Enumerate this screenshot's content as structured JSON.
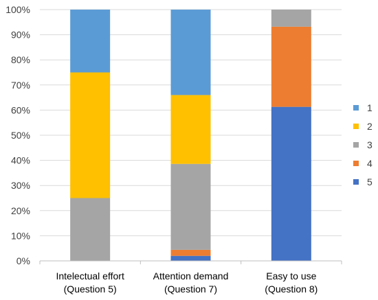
{
  "chart_data": {
    "type": "bar",
    "stacked": true,
    "percent": true,
    "categories": [
      [
        "Intelectual effort",
        "(Question 5)"
      ],
      [
        "Attention demand",
        "(Question 7)"
      ],
      [
        "Easy to use",
        "(Question 8)"
      ]
    ],
    "series": [
      {
        "name": "5",
        "color": "#4472C4",
        "values": [
          0,
          2,
          61.3
        ]
      },
      {
        "name": "4",
        "color": "#ED7D31",
        "values": [
          0,
          2.4,
          31.9
        ]
      },
      {
        "name": "3",
        "color": "#A5A5A5",
        "values": [
          25,
          34.2,
          6.8
        ]
      },
      {
        "name": "2",
        "color": "#FFC000",
        "values": [
          50,
          27.4,
          0
        ]
      },
      {
        "name": "1",
        "color": "#5B9BD5",
        "values": [
          25,
          34,
          0
        ]
      }
    ],
    "y_ticks": [
      "0%",
      "10%",
      "20%",
      "30%",
      "40%",
      "50%",
      "60%",
      "70%",
      "80%",
      "90%",
      "100%"
    ],
    "ylim": [
      0,
      100
    ],
    "grid": true,
    "legend": {
      "position": "right",
      "order": [
        "1",
        "2",
        "3",
        "4",
        "5"
      ]
    },
    "title": "",
    "xlabel": "",
    "ylabel": ""
  }
}
